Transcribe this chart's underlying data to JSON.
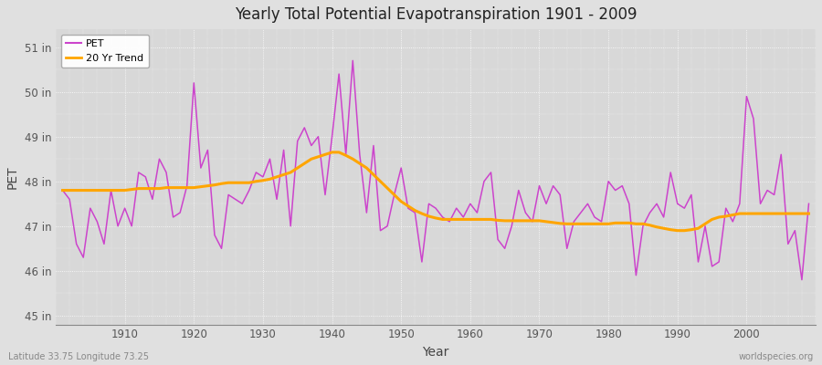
{
  "title": "Yearly Total Potential Evapotranspiration 1901 - 2009",
  "xlabel": "Year",
  "ylabel": "PET",
  "lat_lon_label": "Latitude 33.75 Longitude 73.25",
  "watermark": "worldspecies.org",
  "pet_color": "#CC44CC",
  "trend_color": "#FFA500",
  "fig_bg_color": "#E0E0E0",
  "plot_bg_color": "#D8D8D8",
  "ylim": [
    44.8,
    51.4
  ],
  "yticks": [
    45,
    46,
    47,
    48,
    49,
    50,
    51
  ],
  "ytick_labels": [
    "45 in",
    "46 in",
    "47 in",
    "48 in",
    "49 in",
    "50 in",
    "51 in"
  ],
  "xlim": [
    1900,
    2010
  ],
  "xticks": [
    1910,
    1920,
    1930,
    1940,
    1950,
    1960,
    1970,
    1980,
    1990,
    2000
  ],
  "years": [
    1901,
    1902,
    1903,
    1904,
    1905,
    1906,
    1907,
    1908,
    1909,
    1910,
    1911,
    1912,
    1913,
    1914,
    1915,
    1916,
    1917,
    1918,
    1919,
    1920,
    1921,
    1922,
    1923,
    1924,
    1925,
    1926,
    1927,
    1928,
    1929,
    1930,
    1931,
    1932,
    1933,
    1934,
    1935,
    1936,
    1937,
    1938,
    1939,
    1940,
    1941,
    1942,
    1943,
    1944,
    1945,
    1946,
    1947,
    1948,
    1949,
    1950,
    1951,
    1952,
    1953,
    1954,
    1955,
    1956,
    1957,
    1958,
    1959,
    1960,
    1961,
    1962,
    1963,
    1964,
    1965,
    1966,
    1967,
    1968,
    1969,
    1970,
    1971,
    1972,
    1973,
    1974,
    1975,
    1976,
    1977,
    1978,
    1979,
    1980,
    1981,
    1982,
    1983,
    1984,
    1985,
    1986,
    1987,
    1988,
    1989,
    1990,
    1991,
    1992,
    1993,
    1994,
    1995,
    1996,
    1997,
    1998,
    1999,
    2000,
    2001,
    2002,
    2003,
    2004,
    2005,
    2006,
    2007,
    2008,
    2009
  ],
  "pet_values": [
    47.8,
    47.6,
    46.6,
    46.3,
    47.4,
    47.1,
    46.6,
    47.8,
    47.0,
    47.4,
    47.0,
    48.2,
    48.1,
    47.6,
    48.5,
    48.2,
    47.2,
    47.3,
    47.9,
    50.2,
    48.3,
    48.7,
    46.8,
    46.5,
    47.7,
    47.6,
    47.5,
    47.8,
    48.2,
    48.1,
    48.5,
    47.6,
    48.7,
    47.0,
    48.9,
    49.2,
    48.8,
    49.0,
    47.7,
    49.0,
    50.4,
    48.6,
    50.7,
    48.6,
    47.3,
    48.8,
    46.9,
    47.0,
    47.7,
    48.3,
    47.4,
    47.3,
    46.2,
    47.5,
    47.4,
    47.2,
    47.1,
    47.4,
    47.2,
    47.5,
    47.3,
    48.0,
    48.2,
    46.7,
    46.5,
    47.0,
    47.8,
    47.3,
    47.1,
    47.9,
    47.5,
    47.9,
    47.7,
    46.5,
    47.1,
    47.3,
    47.5,
    47.2,
    47.1,
    48.0,
    47.8,
    47.9,
    47.5,
    45.9,
    47.0,
    47.3,
    47.5,
    47.2,
    48.2,
    47.5,
    47.4,
    47.7,
    46.2,
    47.0,
    46.1,
    46.2,
    47.4,
    47.1,
    47.5,
    49.9,
    49.4,
    47.5,
    47.8,
    47.7,
    48.6,
    46.6,
    46.9,
    45.8,
    47.5
  ],
  "trend_values": [
    47.8,
    47.8,
    47.8,
    47.8,
    47.8,
    47.8,
    47.8,
    47.8,
    47.8,
    47.8,
    47.82,
    47.84,
    47.84,
    47.84,
    47.84,
    47.86,
    47.86,
    47.86,
    47.86,
    47.86,
    47.88,
    47.9,
    47.92,
    47.95,
    47.97,
    47.97,
    47.97,
    47.97,
    48.0,
    48.02,
    48.05,
    48.1,
    48.15,
    48.2,
    48.3,
    48.4,
    48.5,
    48.55,
    48.6,
    48.65,
    48.65,
    48.58,
    48.5,
    48.4,
    48.3,
    48.15,
    48.0,
    47.85,
    47.7,
    47.55,
    47.45,
    47.35,
    47.28,
    47.22,
    47.18,
    47.15,
    47.15,
    47.15,
    47.15,
    47.15,
    47.15,
    47.15,
    47.15,
    47.13,
    47.12,
    47.12,
    47.12,
    47.12,
    47.12,
    47.12,
    47.1,
    47.08,
    47.06,
    47.05,
    47.05,
    47.05,
    47.05,
    47.05,
    47.05,
    47.05,
    47.07,
    47.07,
    47.07,
    47.05,
    47.05,
    47.02,
    46.98,
    46.95,
    46.92,
    46.9,
    46.9,
    46.92,
    46.95,
    47.05,
    47.15,
    47.2,
    47.22,
    47.25,
    47.28,
    47.28,
    47.28,
    47.28,
    47.28,
    47.28,
    47.28,
    47.28,
    47.28,
    47.28,
    47.28
  ]
}
